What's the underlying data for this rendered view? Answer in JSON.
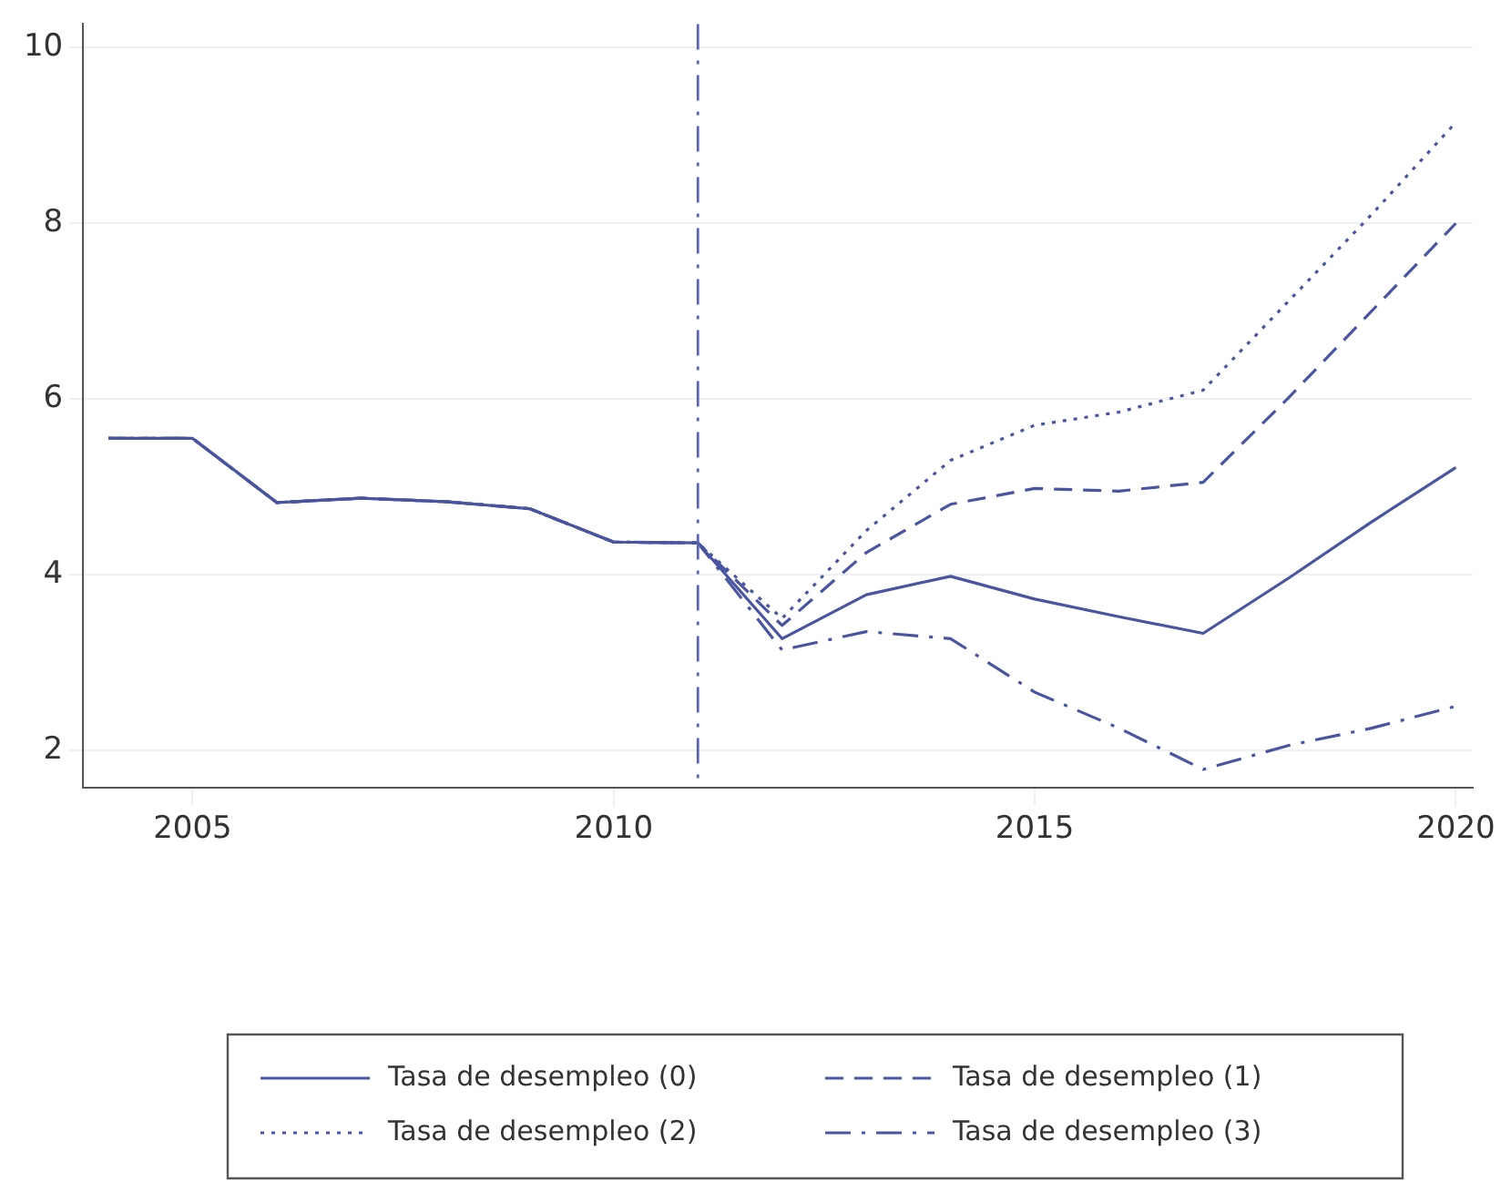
{
  "chart_data": {
    "type": "line",
    "x": [
      2004,
      2005,
      2006,
      2007,
      2008,
      2009,
      2010,
      2011,
      2012,
      2013,
      2014,
      2015,
      2016,
      2017,
      2018,
      2019,
      2020
    ],
    "series": [
      {
        "name": "Tasa de desempleo (0)",
        "color": "#4a55a2",
        "line_style": "solid",
        "values": [
          5.55,
          5.55,
          4.82,
          4.87,
          4.83,
          4.75,
          4.37,
          4.36,
          3.27,
          3.77,
          3.98,
          3.72,
          3.52,
          3.33,
          3.95,
          4.6,
          5.22
        ]
      },
      {
        "name": "Tasa de desempleo (1)",
        "color": "#4a55a2",
        "line_style": "dashed",
        "values": [
          5.55,
          5.55,
          4.82,
          4.87,
          4.83,
          4.75,
          4.37,
          4.36,
          3.42,
          4.25,
          4.8,
          4.98,
          4.95,
          5.05,
          6.0,
          7.0,
          8.0
        ]
      },
      {
        "name": "Tasa de desempleo (2)",
        "color": "#4a55a2",
        "line_style": "dotted",
        "values": [
          5.55,
          5.55,
          4.82,
          4.87,
          4.83,
          4.75,
          4.37,
          4.36,
          3.5,
          4.5,
          5.3,
          5.7,
          5.85,
          6.1,
          7.1,
          8.1,
          9.15
        ]
      },
      {
        "name": "Tasa de desempleo (3)",
        "color": "#4a55a2",
        "line_style": "dashdot",
        "values": [
          5.55,
          5.55,
          4.82,
          4.87,
          4.83,
          4.75,
          4.37,
          4.36,
          3.14,
          3.35,
          3.27,
          2.66,
          2.25,
          1.78,
          2.05,
          2.25,
          2.5
        ]
      }
    ],
    "xlim": [
      2003.7,
      2020.2
    ],
    "xticks": [
      2005,
      2010,
      2015,
      2020
    ],
    "ylim": [
      1.57,
      10.27
    ],
    "yticks": [
      2,
      4,
      6,
      8,
      10
    ],
    "ref_lines": [
      {
        "axis": "x",
        "value": 2011,
        "color": "#5a64b0",
        "line_style": "dashdot"
      }
    ],
    "grid": "y",
    "legend": "bottom",
    "marker": "none"
  }
}
